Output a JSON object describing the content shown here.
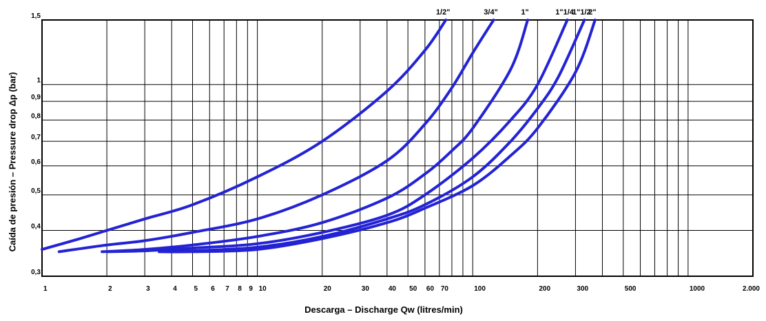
{
  "chart_data": {
    "type": "line",
    "title": "",
    "xlabel": "Descarga – Discharge  Qw (litres/min)",
    "ylabel": "Caída de presión – Pressure drop  Δp (bar)",
    "x_scale": "log",
    "y_scale": "log",
    "xlim": [
      1,
      2000
    ],
    "ylim": [
      0.3,
      1.5
    ],
    "grid": true,
    "legend": "curve-end labels above plot",
    "x_ticks": [
      {
        "value": 1,
        "label": "1"
      },
      {
        "value": 2,
        "label": "2"
      },
      {
        "value": 3,
        "label": "3"
      },
      {
        "value": 4,
        "label": "4"
      },
      {
        "value": 5,
        "label": "5"
      },
      {
        "value": 6,
        "label": "6"
      },
      {
        "value": 7,
        "label": "7"
      },
      {
        "value": 8,
        "label": "8"
      },
      {
        "value": 9,
        "label": "9"
      },
      {
        "value": 10,
        "label": "10"
      },
      {
        "value": 20,
        "label": "20"
      },
      {
        "value": 30,
        "label": "30"
      },
      {
        "value": 40,
        "label": "40"
      },
      {
        "value": 50,
        "label": "50"
      },
      {
        "value": 60,
        "label": "60"
      },
      {
        "value": 70,
        "label": "70"
      },
      {
        "value": 100,
        "label": "100"
      },
      {
        "value": 200,
        "label": "200"
      },
      {
        "value": 300,
        "label": "300"
      },
      {
        "value": 500,
        "label": "500"
      },
      {
        "value": 1000,
        "label": "1000"
      },
      {
        "value": 2000,
        "label": "2.000"
      }
    ],
    "x_gridlines": [
      1,
      2,
      3,
      4,
      5,
      6,
      7,
      8,
      9,
      10,
      20,
      30,
      40,
      50,
      60,
      70,
      80,
      90,
      100,
      200,
      300,
      400,
      500,
      600,
      700,
      800,
      900,
      1000,
      2000
    ],
    "y_ticks": [
      {
        "value": 0.3,
        "label": "0,3"
      },
      {
        "value": 0.4,
        "label": "0,4"
      },
      {
        "value": 0.5,
        "label": "0,5"
      },
      {
        "value": 0.6,
        "label": "0,6"
      },
      {
        "value": 0.7,
        "label": "0,7"
      },
      {
        "value": 0.8,
        "label": "0,8"
      },
      {
        "value": 0.9,
        "label": "0,9"
      },
      {
        "value": 1,
        "label": "1"
      },
      {
        "value": 1.5,
        "label": "1,5"
      }
    ],
    "color": "#2323d4",
    "series": [
      {
        "name": "1/2\"",
        "x": [
          1,
          1.5,
          2,
          3,
          5,
          10,
          20,
          40,
          60,
          75
        ],
        "y": [
          0.355,
          0.38,
          0.4,
          0.43,
          0.47,
          0.56,
          0.7,
          0.96,
          1.24,
          1.5
        ]
      },
      {
        "name": "3/4\"",
        "x": [
          1.2,
          2,
          3,
          5,
          10,
          20,
          40,
          60,
          80,
          100,
          125
        ],
        "y": [
          0.35,
          0.365,
          0.375,
          0.395,
          0.43,
          0.5,
          0.62,
          0.78,
          0.98,
          1.22,
          1.5
        ]
      },
      {
        "name": "1\"",
        "x": [
          1.9,
          3,
          5,
          10,
          20,
          40,
          60,
          80,
          100,
          150,
          180
        ],
        "y": [
          0.35,
          0.355,
          0.365,
          0.385,
          0.42,
          0.49,
          0.57,
          0.66,
          0.76,
          1.1,
          1.5
        ]
      },
      {
        "name": "1\"1/4",
        "x": [
          2,
          3,
          5,
          10,
          20,
          40,
          60,
          100,
          150,
          200,
          275
        ],
        "y": [
          0.35,
          0.352,
          0.358,
          0.368,
          0.395,
          0.44,
          0.5,
          0.63,
          0.8,
          1.0,
          1.5
        ]
      },
      {
        "name": "1\"1/2",
        "x": [
          3.5,
          5,
          10,
          20,
          40,
          60,
          100,
          150,
          200,
          250,
          330
        ],
        "y": [
          0.35,
          0.352,
          0.36,
          0.385,
          0.43,
          0.47,
          0.56,
          0.7,
          0.86,
          1.05,
          1.5
        ]
      },
      {
        "name": "2\"",
        "x": [
          3.5,
          5,
          10,
          20,
          40,
          60,
          100,
          150,
          200,
          300,
          370
        ],
        "y": [
          0.35,
          0.35,
          0.355,
          0.38,
          0.42,
          0.46,
          0.53,
          0.64,
          0.76,
          1.08,
          1.5
        ]
      }
    ]
  }
}
